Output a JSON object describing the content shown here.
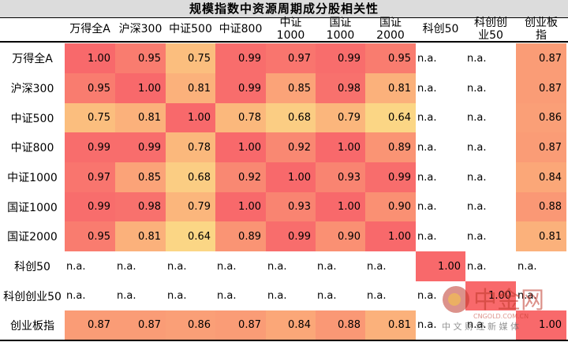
{
  "title": "规模指数中资源周期成分股相关性",
  "columns": [
    "万得全A",
    "沪深300",
    "中证500",
    "中证800",
    "中证\n1000",
    "国证\n1000",
    "国证\n2000",
    "科创50",
    "科创创\n业50",
    "创业板\n指"
  ],
  "chart_data": {
    "type": "heatmap",
    "rows": [
      "万得全A",
      "沪深300",
      "中证500",
      "中证800",
      "中证1000",
      "国证1000",
      "国证2000",
      "科创50",
      "科创创业50",
      "创业板指"
    ],
    "columns": [
      "万得全A",
      "沪深300",
      "中证500",
      "中证800",
      "中证1000",
      "国证1000",
      "国证2000",
      "科创50",
      "科创创业50",
      "创业板指"
    ],
    "values": [
      [
        "1.00",
        "0.95",
        "0.75",
        "0.99",
        "0.97",
        "0.99",
        "0.95",
        "n.a.",
        "n.a.",
        "0.87"
      ],
      [
        "0.95",
        "1.00",
        "0.81",
        "0.99",
        "0.85",
        "0.98",
        "0.81",
        "n.a.",
        "n.a.",
        "0.87"
      ],
      [
        "0.75",
        "0.81",
        "1.00",
        "0.78",
        "0.68",
        "0.79",
        "0.64",
        "n.a.",
        "n.a.",
        "0.86"
      ],
      [
        "0.99",
        "0.99",
        "0.78",
        "1.00",
        "0.92",
        "1.00",
        "0.89",
        "n.a.",
        "n.a.",
        "0.87"
      ],
      [
        "0.97",
        "0.85",
        "0.68",
        "0.92",
        "1.00",
        "0.93",
        "0.99",
        "n.a.",
        "n.a.",
        "0.84"
      ],
      [
        "0.99",
        "0.98",
        "0.79",
        "1.00",
        "0.93",
        "1.00",
        "0.90",
        "n.a.",
        "n.a.",
        "0.88"
      ],
      [
        "0.95",
        "0.81",
        "0.64",
        "0.89",
        "0.99",
        "0.90",
        "1.00",
        "n.a.",
        "n.a.",
        "0.81"
      ],
      [
        "n.a.",
        "n.a.",
        "n.a.",
        "n.a.",
        "n.a.",
        "n.a.",
        "n.a.",
        "1.00",
        "n.a.",
        "n.a."
      ],
      [
        "n.a.",
        "n.a.",
        "n.a.",
        "n.a.",
        "n.a.",
        "n.a.",
        "n.a.",
        "n.a.",
        "1.00",
        "n.a."
      ],
      [
        "0.87",
        "0.87",
        "0.86",
        "0.87",
        "0.84",
        "0.88",
        "0.81",
        "n.a.",
        "n.a.",
        "1.00"
      ]
    ],
    "color_scale": {
      "low": "#fbd685",
      "mid": "#fbaf7a",
      "high": "#f8696b"
    }
  },
  "watermark": {
    "brand": "中金网",
    "domain": "CNGOLD.COM.CN",
    "tagline": "中 文 财 经 新 媒 体"
  }
}
